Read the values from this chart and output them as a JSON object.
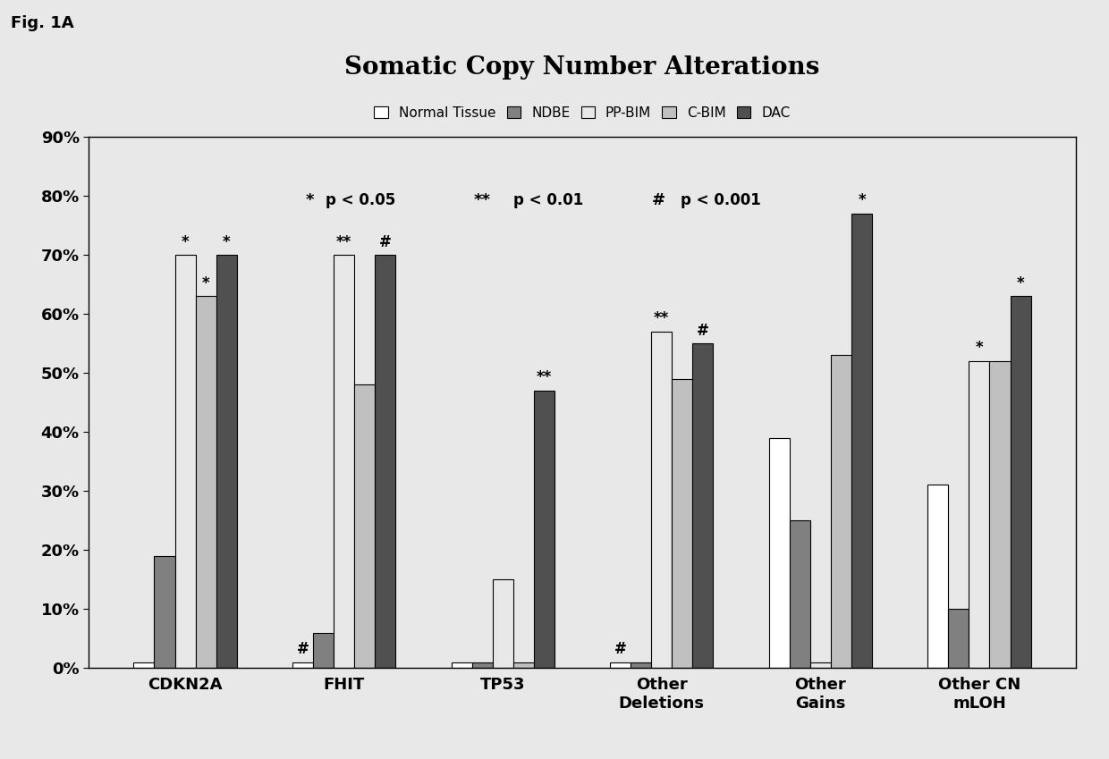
{
  "title": "Somatic Copy Number Alterations",
  "fig_label": "Fig. 1A",
  "categories": [
    "CDKN2A",
    "FHIT",
    "TP53",
    "Other\nDeletions",
    "Other\nGains",
    "Other CN\nmLOH"
  ],
  "series_labels": [
    "Normal Tissue",
    "NDBE",
    "PP-BIM",
    "C-BIM",
    "DAC"
  ],
  "colors": [
    "#ffffff",
    "#808080",
    "#e8e8e8",
    "#c0c0c0",
    "#505050"
  ],
  "edge_colors": [
    "#000000",
    "#000000",
    "#000000",
    "#000000",
    "#000000"
  ],
  "values": {
    "Normal Tissue": [
      1,
      1,
      1,
      1,
      39,
      31
    ],
    "NDBE": [
      19,
      6,
      1,
      1,
      25,
      10
    ],
    "PP-BIM": [
      70,
      70,
      15,
      57,
      1,
      52
    ],
    "C-BIM": [
      63,
      48,
      1,
      49,
      53,
      52
    ],
    "DAC": [
      70,
      70,
      47,
      55,
      77,
      63
    ]
  },
  "annotations": {
    "CDKN2A": {
      "PP-BIM": "*",
      "C-BIM": "*",
      "DAC": "*"
    },
    "FHIT": {
      "Normal Tissue": "#",
      "PP-BIM": "**",
      "DAC": "#"
    },
    "TP53": {
      "DAC": "**"
    },
    "Other\nDeletions": {
      "Normal Tissue": "#",
      "PP-BIM": "**",
      "DAC": "#"
    },
    "Other\nGains": {
      "DAC": "*"
    },
    "Other CN\nmLOH": {
      "PP-BIM": "*",
      "DAC": "*"
    }
  },
  "sig_parts": [
    {
      "symbol": "*",
      "text": " p < 0.05"
    },
    {
      "symbol": "**",
      "text": " p < 0.01"
    },
    {
      "symbol": "#",
      "text": " p < 0.001"
    }
  ],
  "ylim": [
    0,
    90
  ],
  "yticks": [
    0,
    10,
    20,
    30,
    40,
    50,
    60,
    70,
    80,
    90
  ],
  "ytick_labels": [
    "0%",
    "10%",
    "20%",
    "30%",
    "40%",
    "50%",
    "60%",
    "70%",
    "80%",
    "90%"
  ],
  "bar_width": 0.13,
  "background_color": "#e8e8e8",
  "plot_bg_color": "#e8e8e8"
}
